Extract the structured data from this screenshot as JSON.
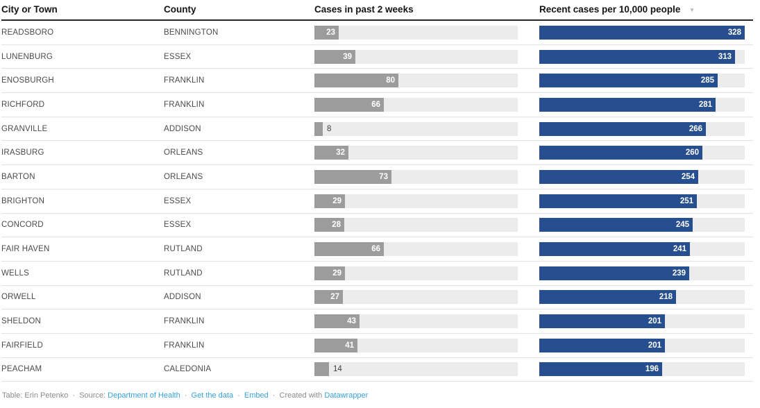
{
  "chart_data": {
    "type": "table",
    "title": "",
    "columns": [
      "City or Town",
      "County",
      "Cases in past 2 weeks",
      "Recent cases per 10,000 people"
    ],
    "sort": {
      "column": "Recent cases per 10,000 people",
      "direction": "desc"
    },
    "bar_columns": {
      "cases": {
        "column": "Cases in past 2 weeks",
        "scale_max": 193,
        "color": "#9c9c9c"
      },
      "rate": {
        "column": "Recent cases per 10,000 people",
        "scale_max": 328,
        "color": "#274f8f"
      }
    },
    "rows": [
      {
        "city": "READSBORO",
        "county": "BENNINGTON",
        "cases": 23,
        "rate": 328
      },
      {
        "city": "LUNENBURG",
        "county": "ESSEX",
        "cases": 39,
        "rate": 313
      },
      {
        "city": "ENOSBURGH",
        "county": "FRANKLIN",
        "cases": 80,
        "rate": 285
      },
      {
        "city": "RICHFORD",
        "county": "FRANKLIN",
        "cases": 66,
        "rate": 281
      },
      {
        "city": "GRANVILLE",
        "county": "ADDISON",
        "cases": 8,
        "rate": 266
      },
      {
        "city": "IRASBURG",
        "county": "ORLEANS",
        "cases": 32,
        "rate": 260
      },
      {
        "city": "BARTON",
        "county": "ORLEANS",
        "cases": 73,
        "rate": 254
      },
      {
        "city": "BRIGHTON",
        "county": "ESSEX",
        "cases": 29,
        "rate": 251
      },
      {
        "city": "CONCORD",
        "county": "ESSEX",
        "cases": 28,
        "rate": 245
      },
      {
        "city": "FAIR HAVEN",
        "county": "RUTLAND",
        "cases": 66,
        "rate": 241
      },
      {
        "city": "WELLS",
        "county": "RUTLAND",
        "cases": 29,
        "rate": 239
      },
      {
        "city": "ORWELL",
        "county": "ADDISON",
        "cases": 27,
        "rate": 218
      },
      {
        "city": "SHELDON",
        "county": "FRANKLIN",
        "cases": 43,
        "rate": 201
      },
      {
        "city": "FAIRFIELD",
        "county": "FRANKLIN",
        "cases": 41,
        "rate": 201
      },
      {
        "city": "PEACHAM",
        "county": "CALEDONIA",
        "cases": 14,
        "rate": 196
      }
    ]
  },
  "icons": {
    "sort_desc": "▼"
  },
  "footer": {
    "table_credit": "Table: Erin Petenko",
    "sep": "·",
    "source_label": "Source:",
    "source_link": "Department of Health",
    "get_data": "Get the data",
    "embed": "Embed",
    "created_with": "Created with",
    "datawrapper": "Datawrapper"
  },
  "colors": {
    "cases_bar": "#9c9c9c",
    "rate_bar": "#274f8f",
    "bar_track": "#ececec",
    "link": "#35a1d8",
    "header_rule": "#262626",
    "row_rule": "#e2e2e2"
  }
}
